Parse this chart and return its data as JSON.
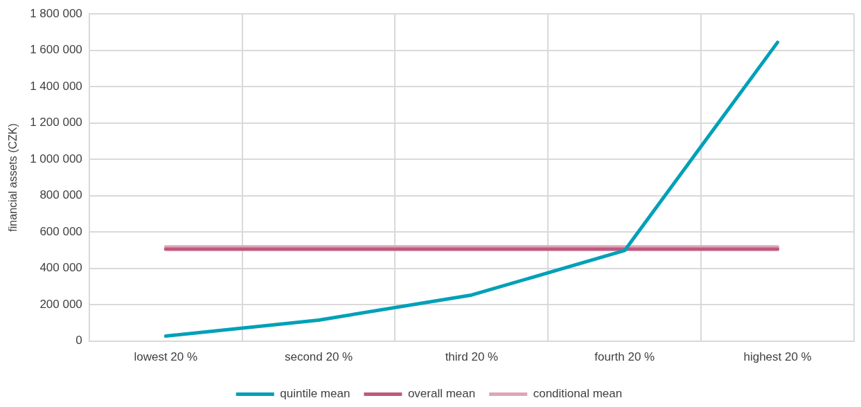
{
  "chart_data": {
    "type": "line",
    "ylabel": "financial assets (CZK)",
    "categories": [
      "lowest 20 %",
      "second 20 %",
      "third 20 %",
      "fourth 20 %",
      "highest 20 %"
    ],
    "series": [
      {
        "name": "quintile mean",
        "color": "#00a0b8",
        "values": [
          27000,
          115000,
          253000,
          498000,
          1644000
        ]
      },
      {
        "name": "overall mean",
        "color": "#c0587e",
        "values": [
          505000,
          505000,
          505000,
          505000,
          505000
        ]
      },
      {
        "name": "conditional mean",
        "color": "#dca6b8",
        "values": [
          518000,
          518000,
          518000,
          518000,
          518000
        ]
      }
    ],
    "ylim": [
      0,
      1800000
    ],
    "yticks": [
      {
        "value": 0,
        "label": "0"
      },
      {
        "value": 200000,
        "label": "200 000"
      },
      {
        "value": 400000,
        "label": "400 000"
      },
      {
        "value": 600000,
        "label": "600 000"
      },
      {
        "value": 800000,
        "label": "800 000"
      },
      {
        "value": 1000000,
        "label": "1 000 000"
      },
      {
        "value": 1200000,
        "label": "1 200 000"
      },
      {
        "value": 1400000,
        "label": "1 400 000"
      },
      {
        "value": 1600000,
        "label": "1 600 000"
      },
      {
        "value": 1800000,
        "label": "1 800 000"
      }
    ],
    "grid": true,
    "legend": "bottom",
    "marker": "none",
    "line_style": "solid"
  }
}
